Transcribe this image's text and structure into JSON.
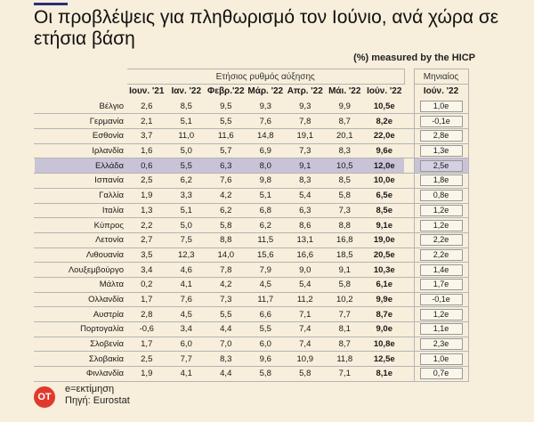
{
  "title": "Οι προβλέψεις για πληθωρισμό τον Ιούνιο, ανά χώρα σε ετήσια βάση",
  "note": "(%) measured by the HICP",
  "group_label": "Ετήσιος ρυθμός αύξησης",
  "monthly_label": "Μηνιαίος",
  "months": [
    "Ιουν. '21",
    "Ιαν. '22",
    "Φεβρ.'22",
    "Μάρ. '22",
    "Απρ. '22",
    "Μάι. '22",
    "Ιούν. '22"
  ],
  "monthly_month": "Ιούν. '22",
  "highlight": "Ελλάδα",
  "chart_data": {
    "type": "table",
    "rows": [
      {
        "country": "Βέλγιο",
        "values": [
          "2,6",
          "8,5",
          "9,5",
          "9,3",
          "9,3",
          "9,9",
          "10,5e"
        ],
        "monthly": "1,0e"
      },
      {
        "country": "Γερμανία",
        "values": [
          "2,1",
          "5,1",
          "5,5",
          "7,6",
          "7,8",
          "8,7",
          "8,2e"
        ],
        "monthly": "-0,1e"
      },
      {
        "country": "Εσθονία",
        "values": [
          "3,7",
          "11,0",
          "11,6",
          "14,8",
          "19,1",
          "20,1",
          "22,0e"
        ],
        "monthly": "2,8e"
      },
      {
        "country": "Ιρλανδία",
        "values": [
          "1,6",
          "5,0",
          "5,7",
          "6,9",
          "7,3",
          "8,3",
          "9,6e"
        ],
        "monthly": "1,3e"
      },
      {
        "country": "Ελλάδα",
        "values": [
          "0,6",
          "5,5",
          "6,3",
          "8,0",
          "9,1",
          "10,5",
          "12,0e"
        ],
        "monthly": "2,5e"
      },
      {
        "country": "Ισπανία",
        "values": [
          "2,5",
          "6,2",
          "7,6",
          "9,8",
          "8,3",
          "8,5",
          "10,0e"
        ],
        "monthly": "1,8e"
      },
      {
        "country": "Γαλλία",
        "values": [
          "1,9",
          "3,3",
          "4,2",
          "5,1",
          "5,4",
          "5,8",
          "6,5e"
        ],
        "monthly": "0,8e"
      },
      {
        "country": "Ιταλία",
        "values": [
          "1,3",
          "5,1",
          "6,2",
          "6,8",
          "6,3",
          "7,3",
          "8,5e"
        ],
        "monthly": "1,2e"
      },
      {
        "country": "Κύπρος",
        "values": [
          "2,2",
          "5,0",
          "5,8",
          "6,2",
          "8,6",
          "8,8",
          "9,1e"
        ],
        "monthly": "1,2e"
      },
      {
        "country": "Λετονία",
        "values": [
          "2,7",
          "7,5",
          "8,8",
          "11,5",
          "13,1",
          "16,8",
          "19,0e"
        ],
        "monthly": "2,2e"
      },
      {
        "country": "Λιθουανία",
        "values": [
          "3,5",
          "12,3",
          "14,0",
          "15,6",
          "16,6",
          "18,5",
          "20,5e"
        ],
        "monthly": "2,2e"
      },
      {
        "country": "Λουξεμβούργο",
        "values": [
          "3,4",
          "4,6",
          "7,8",
          "7,9",
          "9,0",
          "9,1",
          "10,3e"
        ],
        "monthly": "1,4e"
      },
      {
        "country": "Μάλτα",
        "values": [
          "0,2",
          "4,1",
          "4,2",
          "4,5",
          "5,4",
          "5,8",
          "6,1e"
        ],
        "monthly": "1,7e"
      },
      {
        "country": "Ολλανδία",
        "values": [
          "1,7",
          "7,6",
          "7,3",
          "11,7",
          "11,2",
          "10,2",
          "9,9e"
        ],
        "monthly": "-0,1e"
      },
      {
        "country": "Αυστρία",
        "values": [
          "2,8",
          "4,5",
          "5,5",
          "6,6",
          "7,1",
          "7,7",
          "8,7e"
        ],
        "monthly": "1,2e"
      },
      {
        "country": "Πορτογαλία",
        "values": [
          "-0,6",
          "3,4",
          "4,4",
          "5,5",
          "7,4",
          "8,1",
          "9,0e"
        ],
        "monthly": "1,1e"
      },
      {
        "country": "Σλοβενία",
        "values": [
          "1,7",
          "6,0",
          "7,0",
          "6,0",
          "7,4",
          "8,7",
          "10,8e"
        ],
        "monthly": "2,3e"
      },
      {
        "country": "Σλοβακία",
        "values": [
          "2,5",
          "7,7",
          "8,3",
          "9,6",
          "10,9",
          "11,8",
          "12,5e"
        ],
        "monthly": "1,0e"
      },
      {
        "country": "Φινλανδία",
        "values": [
          "1,9",
          "4,1",
          "4,4",
          "5,8",
          "5,8",
          "7,1",
          "8,1e"
        ],
        "monthly": "0,7e"
      }
    ]
  },
  "logo_text": "OT",
  "footer": {
    "line1": "e=εκτίμηση",
    "line2": "Πηγή: Eurostat"
  },
  "colors": {
    "background": "#f7eedb",
    "highlight": "#c9c3d8",
    "logo": "#e03a2f"
  }
}
